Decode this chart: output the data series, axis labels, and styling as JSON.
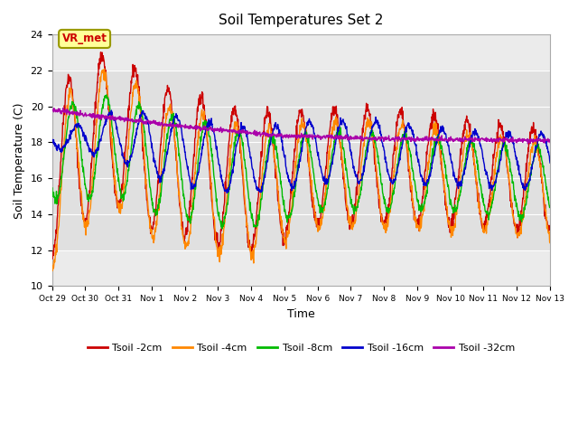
{
  "title": "Soil Temperatures Set 2",
  "xlabel": "Time",
  "ylabel": "Soil Temperature (C)",
  "ylim": [
    10,
    24
  ],
  "xlim": [
    0,
    360
  ],
  "xtick_positions": [
    0,
    24,
    48,
    72,
    96,
    120,
    144,
    168,
    192,
    216,
    240,
    264,
    288,
    312,
    336,
    360
  ],
  "xtick_labels": [
    "Oct 29",
    "Oct 30",
    "Oct 31",
    "Nov 1",
    "Nov 2",
    "Nov 3",
    "Nov 4",
    "Nov 5",
    "Nov 6",
    "Nov 7",
    "Nov 8",
    "Nov 9",
    "Nov 10",
    "Nov 11",
    "Nov 12",
    "Nov 13"
  ],
  "ytick_positions": [
    10,
    12,
    14,
    16,
    18,
    20,
    22,
    24
  ],
  "shaded_band": [
    12.0,
    22.0
  ],
  "shaded_color": "#e0e0e0",
  "plot_bg": "#ebebeb",
  "colors": {
    "2cm": "#cc0000",
    "4cm": "#ff8800",
    "8cm": "#00bb00",
    "16cm": "#0000cc",
    "32cm": "#aa00aa"
  },
  "legend_labels": [
    "Tsoil -2cm",
    "Tsoil -4cm",
    "Tsoil -8cm",
    "Tsoil -16cm",
    "Tsoil -32cm"
  ],
  "annotation_text": "VR_met",
  "annotation_color": "#cc0000",
  "annotation_bg": "#ffff99",
  "annotation_border": "#999900"
}
